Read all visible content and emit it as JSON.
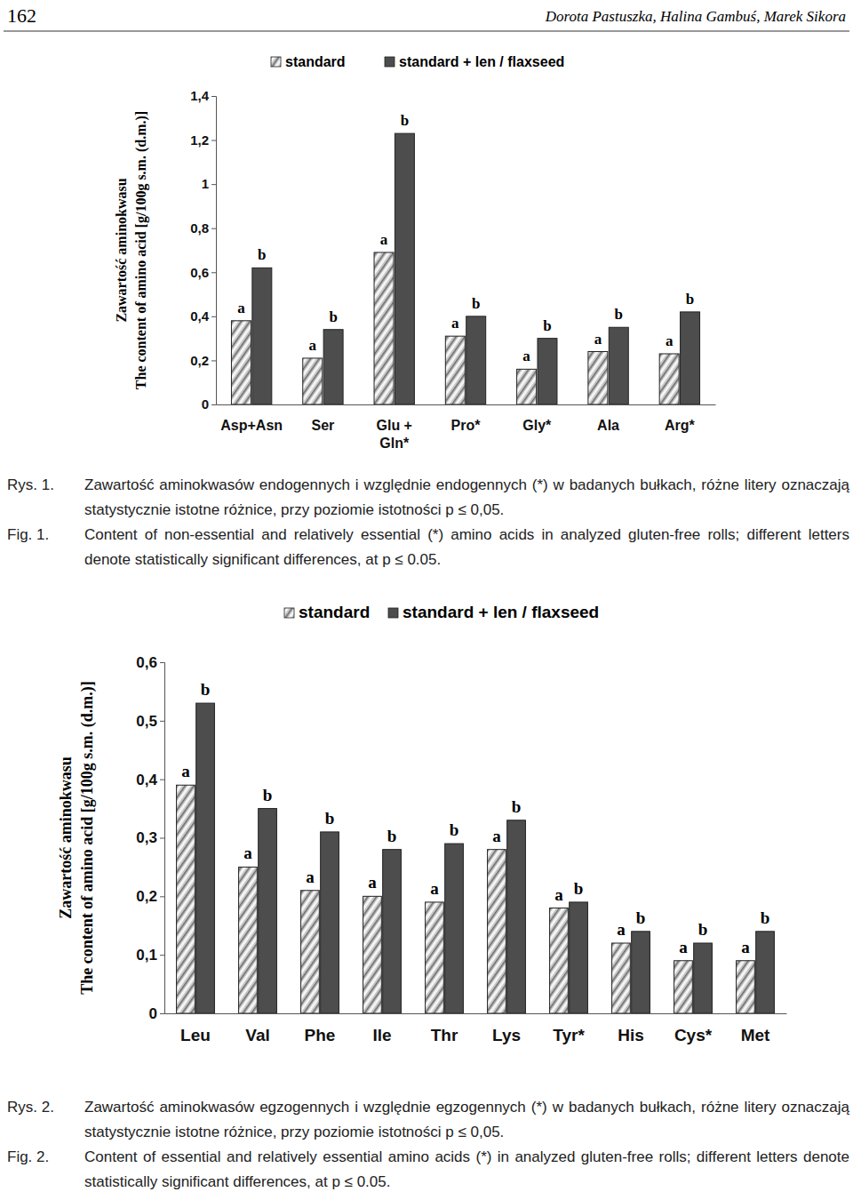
{
  "page": {
    "number": "162",
    "running_head": "Dorota Pastuszka, Halina Gambuś, Marek Sikora"
  },
  "captions": [
    {
      "label_pl": "Rys. 1.",
      "text_pl": "Zawartość aminokwasów endogennych i względnie endogennych (*) w badanych bułkach, różne litery oznaczają statystycznie istotne różnice, przy poziomie istotności p ≤ 0,05.",
      "label_en": "Fig. 1.",
      "text_en": "Content of non-essential and relatively essential (*) amino acids in analyzed gluten-free rolls; different letters denote statistically significant differences, at p ≤ 0.05."
    },
    {
      "label_pl": "Rys. 2.",
      "text_pl": "Zawartość aminokwasów egzogennych i względnie egzogennych (*) w badanych bułkach, różne litery oznaczają statystycznie istotne różnice, przy poziomie istotności p ≤ 0,05.",
      "label_en": "Fig. 2.",
      "text_en": "Content of essential and relatively essential amino acids (*) in analyzed gluten-free rolls; different letters denote statistically significant differences, at p ≤ 0.05."
    }
  ],
  "chart_data": [
    {
      "type": "bar",
      "ylabel": [
        "Zawartość aminokwasu",
        "The content of amino acid [g/100g s.m. (d.m.)]"
      ],
      "categories": [
        "Asp+Asn",
        "Ser",
        "Glu + Gln*",
        "Pro*",
        "Gly*",
        "Ala",
        "Arg*"
      ],
      "series": [
        {
          "name": "standard",
          "color": "#c4c4c4",
          "values": [
            0.38,
            0.21,
            0.69,
            0.31,
            0.16,
            0.24,
            0.23
          ],
          "significance": [
            "a",
            "a",
            "a",
            "a",
            "a",
            "a",
            "a"
          ]
        },
        {
          "name": "standard + len / flaxseed",
          "color": "#4d4d4d",
          "values": [
            0.62,
            0.34,
            1.23,
            0.4,
            0.3,
            0.35,
            0.42
          ],
          "significance": [
            "b",
            "b",
            "b",
            "b",
            "b",
            "b",
            "b"
          ]
        }
      ],
      "ylim": [
        0,
        1.4
      ],
      "yticks": [
        0,
        {
          "value": 0.2,
          "label": "0,2"
        },
        {
          "value": 0.4,
          "label": "0,4"
        },
        {
          "value": 0.6,
          "label": "0,6"
        },
        {
          "value": 0.8,
          "label": "0,8"
        },
        1,
        {
          "value": 1.2,
          "label": "1,2"
        },
        {
          "value": 1.4,
          "label": "1,4"
        }
      ],
      "grid": false,
      "legend": "top"
    },
    {
      "type": "bar",
      "ylabel": [
        "Zawartość aminokwasu",
        "The content of amino acid [g/100g s.m. (d.m.)]"
      ],
      "categories": [
        "Leu",
        "Val",
        "Phe",
        "Ile",
        "Thr",
        "Lys",
        "Tyr*",
        "His",
        "Cys*",
        "Met"
      ],
      "series": [
        {
          "name": "standard",
          "color": "#c4c4c4",
          "values": [
            0.39,
            0.25,
            0.21,
            0.2,
            0.19,
            0.28,
            0.18,
            0.12,
            0.09,
            0.09
          ],
          "significance": [
            "a",
            "a",
            "a",
            "a",
            "a",
            "a",
            "a",
            "a",
            "a",
            "a"
          ]
        },
        {
          "name": "standard + len / flaxseed",
          "color": "#4d4d4d",
          "values": [
            0.53,
            0.35,
            0.31,
            0.28,
            0.29,
            0.33,
            0.19,
            0.14,
            0.12,
            0.14
          ],
          "significance": [
            "b",
            "b",
            "b",
            "b",
            "b",
            "b",
            "b",
            "b",
            "b",
            "b"
          ]
        }
      ],
      "ylim": [
        0,
        0.6
      ],
      "yticks": [
        0,
        {
          "value": 0.1,
          "label": "0,1"
        },
        {
          "value": 0.2,
          "label": "0,2"
        },
        {
          "value": 0.3,
          "label": "0,3"
        },
        {
          "value": 0.4,
          "label": "0,4"
        },
        {
          "value": 0.5,
          "label": "0,5"
        },
        {
          "value": 0.6,
          "label": "0,6"
        }
      ],
      "grid": false,
      "legend": "top"
    }
  ]
}
